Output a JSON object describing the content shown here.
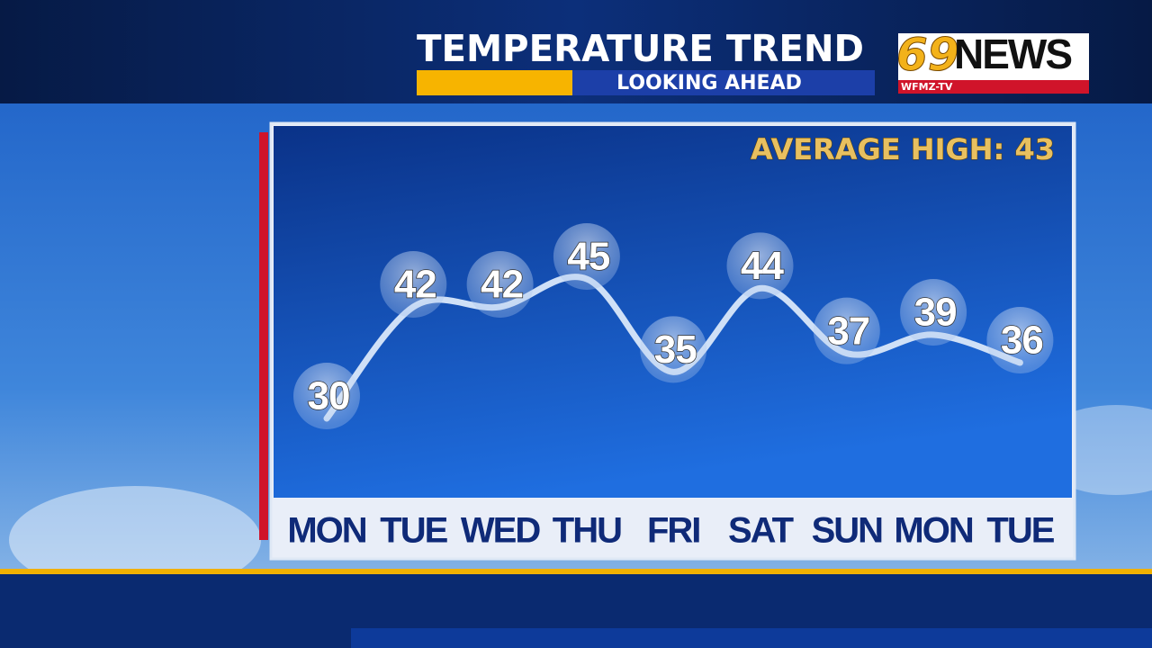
{
  "logo": {
    "number": "69",
    "word": "NEWS",
    "station": "WFMZ-TV"
  },
  "chart_data": {
    "type": "line",
    "title": "TEMPERATURE TREND",
    "subtitle": "LOOKING AHEAD",
    "annotation": "AVERAGE HIGH: 43",
    "categories": [
      "MON",
      "TUE",
      "WED",
      "THU",
      "FRI",
      "SAT",
      "SUN",
      "MON",
      "TUE"
    ],
    "values": [
      30,
      42,
      42,
      45,
      35,
      44,
      37,
      39,
      36
    ],
    "color": "#cfe0f7"
  }
}
